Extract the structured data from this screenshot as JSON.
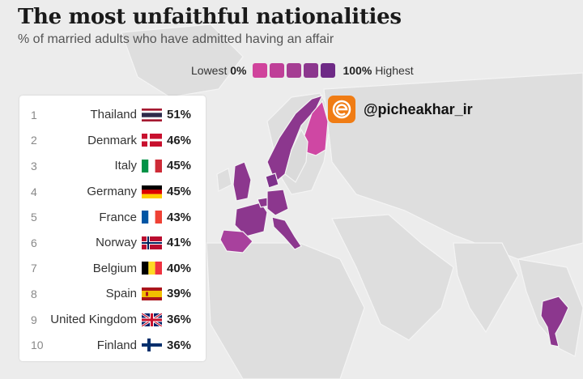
{
  "title": "The most unfaithful nationalities",
  "subtitle": "% of married adults who have admitted having an affair",
  "legend": {
    "low_text": "Lowest",
    "low_value": "0%",
    "high_value": "100%",
    "high_text": "Highest",
    "colors": [
      "#d0439c",
      "#bf3f98",
      "#a53e93",
      "#8c378e",
      "#6e2a86"
    ]
  },
  "watermark": {
    "handle": "@picheakhar_ir",
    "logo_icon": "e-logo-icon",
    "logo_color": "#f07c14"
  },
  "colors": {
    "background": "#ececec",
    "land": "#dadada",
    "highlight": "#8a3b8f",
    "finland_pink": "#cf47a3"
  },
  "chart_data": {
    "type": "table",
    "title": "The most unfaithful nationalities",
    "subtitle": "% of married adults who have admitted having an affair",
    "columns": [
      "rank",
      "country",
      "percent"
    ],
    "rows": [
      {
        "rank": "1",
        "country": "Thailand",
        "flag": "thailand-flag-icon",
        "value": 51,
        "label": "51%"
      },
      {
        "rank": "2",
        "country": "Denmark",
        "flag": "denmark-flag-icon",
        "value": 46,
        "label": "46%"
      },
      {
        "rank": "3",
        "country": "Italy",
        "flag": "italy-flag-icon",
        "value": 45,
        "label": "45%"
      },
      {
        "rank": "4",
        "country": "Germany",
        "flag": "germany-flag-icon",
        "value": 45,
        "label": "45%"
      },
      {
        "rank": "5",
        "country": "France",
        "flag": "france-flag-icon",
        "value": 43,
        "label": "43%"
      },
      {
        "rank": "6",
        "country": "Norway",
        "flag": "norway-flag-icon",
        "value": 41,
        "label": "41%"
      },
      {
        "rank": "7",
        "country": "Belgium",
        "flag": "belgium-flag-icon",
        "value": 40,
        "label": "40%"
      },
      {
        "rank": "8",
        "country": "Spain",
        "flag": "spain-flag-icon",
        "value": 39,
        "label": "39%"
      },
      {
        "rank": "9",
        "country": "United Kingdom",
        "flag": "uk-flag-icon",
        "value": 36,
        "label": "36%"
      },
      {
        "rank": "10",
        "country": "Finland",
        "flag": "finland-flag-icon",
        "value": 36,
        "label": "36%"
      }
    ],
    "color_scale": {
      "min": 0,
      "max": 100
    }
  }
}
